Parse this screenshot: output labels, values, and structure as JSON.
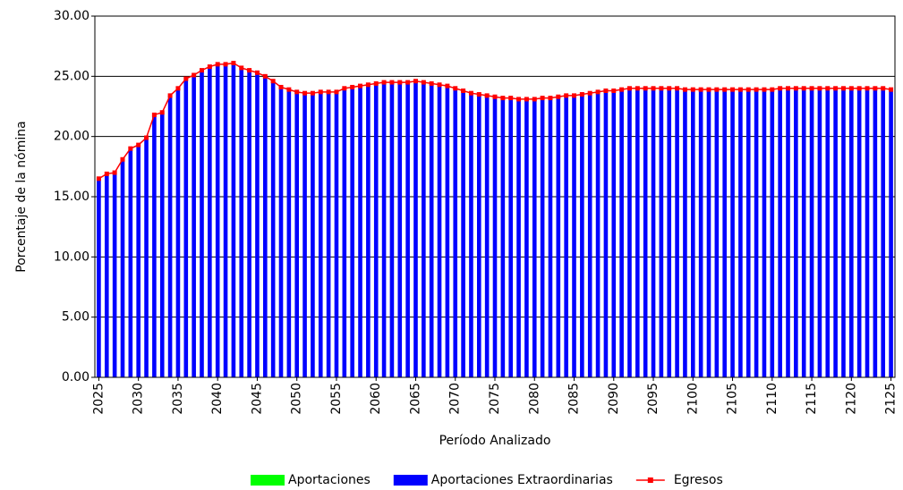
{
  "chart_data": {
    "type": "bar",
    "y_label": "Porcentaje de la nómina",
    "x_label": "Período Analizado",
    "categories": [
      "2025",
      null,
      null,
      null,
      null,
      "2030",
      null,
      null,
      null,
      null,
      "2035",
      null,
      null,
      null,
      null,
      "2040",
      null,
      null,
      null,
      null,
      "2045",
      null,
      null,
      null,
      null,
      "2050",
      null,
      null,
      null,
      null,
      "2055",
      null,
      null,
      null,
      null,
      "2060",
      null,
      null,
      null,
      null,
      "2065",
      null,
      null,
      null,
      null,
      "2070",
      null,
      null,
      null,
      null,
      "2075",
      null,
      null,
      null,
      null,
      "2080",
      null,
      null,
      null,
      null,
      "2085",
      null,
      null,
      null,
      null,
      "2090",
      null,
      null,
      null,
      null,
      "2095",
      null,
      null,
      null,
      null,
      "2100",
      null,
      null,
      null,
      null,
      "2105",
      null,
      null,
      null,
      null,
      "2110",
      null,
      null,
      null,
      null,
      "2115",
      null,
      null,
      null,
      null,
      "2120",
      null,
      null,
      null,
      null,
      "2125"
    ],
    "series": [
      {
        "name": "Aportaciones",
        "color": "#00ff00",
        "stack": true,
        "values": [
          0,
          0,
          0,
          0,
          0,
          0,
          0,
          0,
          0,
          0,
          0,
          0,
          0,
          0,
          0,
          0,
          0,
          0,
          0,
          0,
          0,
          0,
          0,
          0,
          0,
          0,
          0,
          0,
          0,
          0,
          0,
          0,
          0,
          0,
          0,
          0,
          0,
          0,
          0,
          0,
          0,
          0,
          0,
          0,
          0,
          0,
          0,
          0,
          0,
          0,
          0,
          0,
          0,
          0,
          0,
          0,
          0,
          0,
          0,
          0,
          0,
          0,
          0,
          0,
          0,
          0,
          0,
          0,
          0,
          0,
          0,
          0,
          0,
          0,
          0,
          0,
          0,
          0,
          0,
          0,
          0,
          0,
          0,
          0,
          0,
          0,
          0,
          0,
          0,
          0,
          0,
          0,
          0,
          0,
          0,
          0,
          0,
          0,
          0,
          0,
          0
        ]
      },
      {
        "name": "Aportaciones Extraordinarias",
        "color": "#0000ff",
        "stack": true,
        "values": [
          16.5,
          16.9,
          17.0,
          18.1,
          19.0,
          19.3,
          19.9,
          21.8,
          22.0,
          23.4,
          24.0,
          24.8,
          25.1,
          25.5,
          25.8,
          26.0,
          26.0,
          26.1,
          25.7,
          25.5,
          25.3,
          25.0,
          24.6,
          24.1,
          23.9,
          23.7,
          23.6,
          23.6,
          23.7,
          23.7,
          23.7,
          24.0,
          24.1,
          24.2,
          24.3,
          24.4,
          24.5,
          24.5,
          24.5,
          24.5,
          24.6,
          24.5,
          24.4,
          24.3,
          24.2,
          24.0,
          23.8,
          23.6,
          23.5,
          23.4,
          23.3,
          23.2,
          23.2,
          23.1,
          23.1,
          23.1,
          23.2,
          23.2,
          23.3,
          23.4,
          23.4,
          23.5,
          23.6,
          23.7,
          23.8,
          23.8,
          23.9,
          24.0,
          24.0,
          24.0,
          24.0,
          24.0,
          24.0,
          24.0,
          23.9,
          23.9,
          23.9,
          23.9,
          23.9,
          23.9,
          23.9,
          23.9,
          23.9,
          23.9,
          23.9,
          23.9,
          24.0,
          24.0,
          24.0,
          24.0,
          24.0,
          24.0,
          24.0,
          24.0,
          24.0,
          24.0,
          24.0,
          24.0,
          24.0,
          24.0,
          23.9
        ]
      },
      {
        "name": "Egresos",
        "color": "#ff0000",
        "kind": "line",
        "values": [
          16.5,
          16.9,
          17.0,
          18.1,
          19.0,
          19.3,
          19.9,
          21.8,
          22.0,
          23.4,
          24.0,
          24.8,
          25.1,
          25.5,
          25.8,
          26.0,
          26.0,
          26.1,
          25.7,
          25.5,
          25.3,
          25.0,
          24.6,
          24.1,
          23.9,
          23.7,
          23.6,
          23.6,
          23.7,
          23.7,
          23.7,
          24.0,
          24.1,
          24.2,
          24.3,
          24.4,
          24.5,
          24.5,
          24.5,
          24.5,
          24.6,
          24.5,
          24.4,
          24.3,
          24.2,
          24.0,
          23.8,
          23.6,
          23.5,
          23.4,
          23.3,
          23.2,
          23.2,
          23.1,
          23.1,
          23.1,
          23.2,
          23.2,
          23.3,
          23.4,
          23.4,
          23.5,
          23.6,
          23.7,
          23.8,
          23.8,
          23.9,
          24.0,
          24.0,
          24.0,
          24.0,
          24.0,
          24.0,
          24.0,
          23.9,
          23.9,
          23.9,
          23.9,
          23.9,
          23.9,
          23.9,
          23.9,
          23.9,
          23.9,
          23.9,
          23.9,
          24.0,
          24.0,
          24.0,
          24.0,
          24.0,
          24.0,
          24.0,
          24.0,
          24.0,
          24.0,
          24.0,
          24.0,
          24.0,
          24.0,
          23.9
        ]
      }
    ],
    "ylim": [
      0,
      30
    ],
    "yticks": [
      {
        "value": 0,
        "label": "0.00"
      },
      {
        "value": 5,
        "label": "5.00"
      },
      {
        "value": 10,
        "label": "10.00"
      },
      {
        "value": 15,
        "label": "15.00"
      },
      {
        "value": 20,
        "label": "20.00"
      },
      {
        "value": 25,
        "label": "25.00"
      },
      {
        "value": 30,
        "label": "30.00"
      }
    ],
    "grid": true,
    "legend": "bottom"
  }
}
